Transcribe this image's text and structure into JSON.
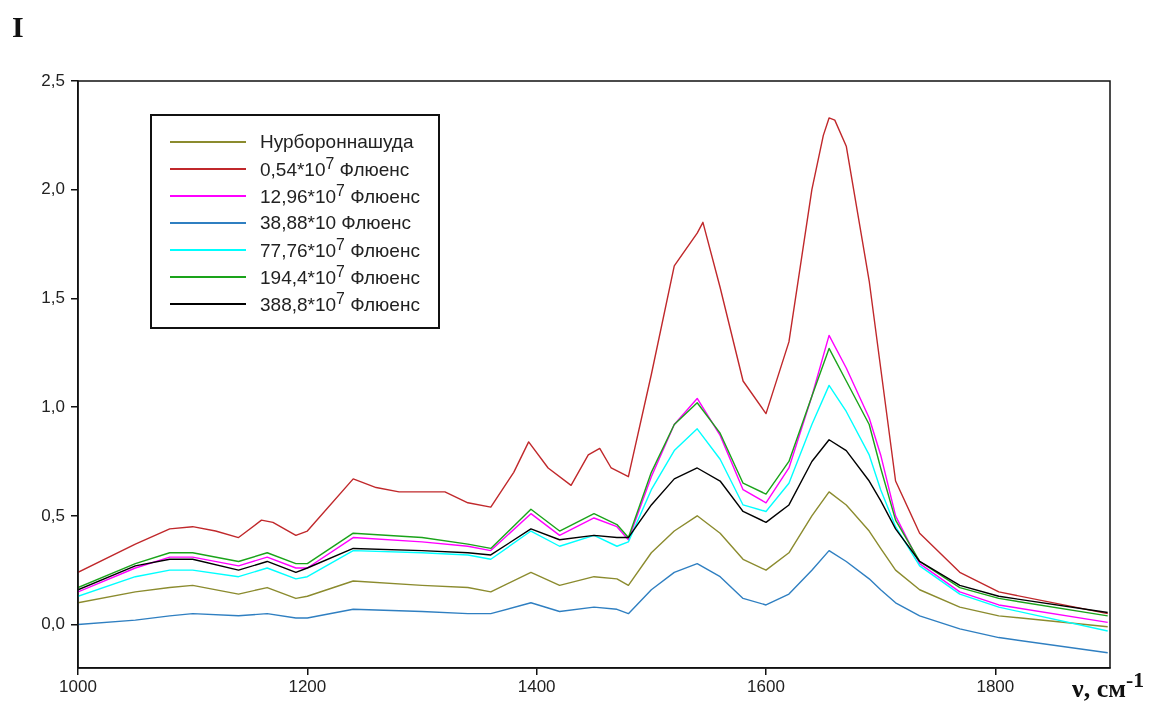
{
  "chart_data": {
    "type": "line",
    "ylabel": "I",
    "xlabel": "ν, см$^{-1}$",
    "legend": "top left",
    "grid": false,
    "marker": "none",
    "line_style": "solid",
    "x": [
      1000,
      1050,
      1080,
      1100,
      1140,
      1165,
      1190,
      1200,
      1240,
      1300,
      1340,
      1360,
      1395,
      1420,
      1450,
      1470,
      1480,
      1500,
      1520,
      1540,
      1560,
      1580,
      1600,
      1620,
      1640,
      1655,
      1670,
      1690,
      1700,
      1713,
      1734,
      1769,
      1803,
      1898
    ],
    "xlim": [
      1000,
      1900
    ],
    "xticks": [
      1000,
      1200,
      1400,
      1600,
      1800
    ],
    "ylim": [
      -0.2,
      2.5
    ],
    "yticks": [
      {
        "value": 0,
        "label": "0,0"
      },
      {
        "value": 0.5,
        "label": "0,5"
      },
      {
        "value": 1,
        "label": "1,0"
      },
      {
        "value": 1.5,
        "label": "1,5"
      },
      {
        "value": 2,
        "label": "2,0"
      },
      {
        "value": 2.5,
        "label": "2,5"
      }
    ],
    "series": [
      {
        "name": "Нурбороннашуда",
        "color": "#8b8b2e",
        "values": [
          0.1,
          0.15,
          0.17,
          0.18,
          0.14,
          0.17,
          0.12,
          0.13,
          0.2,
          0.18,
          0.17,
          0.15,
          0.24,
          0.18,
          0.22,
          0.21,
          0.18,
          0.33,
          0.43,
          0.5,
          0.42,
          0.3,
          0.25,
          0.33,
          0.5,
          0.61,
          0.55,
          0.43,
          0.35,
          0.25,
          0.16,
          0.08,
          0.04,
          -0.01
        ]
      },
      {
        "name": "0,54*10$^{7}$ Флюенс",
        "color": "#c0282b",
        "x": [
          1000,
          1050,
          1080,
          1100,
          1120,
          1140,
          1160,
          1170,
          1190,
          1200,
          1240,
          1260,
          1280,
          1320,
          1340,
          1360,
          1380,
          1393,
          1410,
          1430,
          1445,
          1455,
          1465,
          1480,
          1500,
          1520,
          1540,
          1545,
          1560,
          1580,
          1600,
          1620,
          1640,
          1650,
          1655,
          1660,
          1670,
          1690,
          1699,
          1713,
          1734,
          1769,
          1803,
          1898
        ],
        "values": [
          0.24,
          0.37,
          0.44,
          0.45,
          0.43,
          0.4,
          0.48,
          0.47,
          0.41,
          0.43,
          0.67,
          0.63,
          0.61,
          0.61,
          0.56,
          0.54,
          0.7,
          0.84,
          0.72,
          0.64,
          0.78,
          0.81,
          0.72,
          0.68,
          1.15,
          1.65,
          1.8,
          1.85,
          1.55,
          1.12,
          0.97,
          1.3,
          2.0,
          2.25,
          2.33,
          2.32,
          2.2,
          1.58,
          1.22,
          0.66,
          0.42,
          0.24,
          0.15,
          0.05
        ]
      },
      {
        "name": "12,96*10$^{7}$ Флюенс",
        "color": "#ff00ff",
        "values": [
          0.15,
          0.26,
          0.31,
          0.31,
          0.27,
          0.31,
          0.26,
          0.26,
          0.4,
          0.38,
          0.36,
          0.34,
          0.51,
          0.41,
          0.49,
          0.45,
          0.39,
          0.68,
          0.92,
          1.04,
          0.87,
          0.62,
          0.56,
          0.72,
          1.05,
          1.33,
          1.18,
          0.95,
          0.78,
          0.5,
          0.28,
          0.15,
          0.09,
          0.01
        ]
      },
      {
        "name": "38,88*10 Флюенс",
        "color": "#2f7fc1",
        "values": [
          0.0,
          0.02,
          0.04,
          0.05,
          0.04,
          0.05,
          0.03,
          0.03,
          0.07,
          0.06,
          0.05,
          0.05,
          0.1,
          0.06,
          0.08,
          0.07,
          0.05,
          0.16,
          0.24,
          0.28,
          0.22,
          0.12,
          0.09,
          0.14,
          0.25,
          0.34,
          0.29,
          0.21,
          0.16,
          0.1,
          0.04,
          -0.02,
          -0.06,
          -0.13
        ]
      },
      {
        "name": "77,76*10$^{7}$ Флюенс",
        "color": "#00ffff",
        "values": [
          0.13,
          0.22,
          0.25,
          0.25,
          0.22,
          0.26,
          0.21,
          0.22,
          0.34,
          0.33,
          0.32,
          0.3,
          0.43,
          0.36,
          0.41,
          0.36,
          0.38,
          0.62,
          0.8,
          0.9,
          0.76,
          0.55,
          0.52,
          0.65,
          0.92,
          1.1,
          0.98,
          0.78,
          0.62,
          0.45,
          0.27,
          0.14,
          0.08,
          -0.03
        ]
      },
      {
        "name": "194,4*10$^{7}$ Флюенс",
        "color": "#1aa31a",
        "values": [
          0.17,
          0.28,
          0.33,
          0.33,
          0.29,
          0.33,
          0.28,
          0.28,
          0.42,
          0.4,
          0.37,
          0.35,
          0.53,
          0.43,
          0.51,
          0.46,
          0.4,
          0.7,
          0.92,
          1.02,
          0.88,
          0.65,
          0.6,
          0.75,
          1.05,
          1.27,
          1.12,
          0.92,
          0.72,
          0.48,
          0.29,
          0.17,
          0.12,
          0.04
        ]
      },
      {
        "name": "388,8*10$^{7}$ Флюенс",
        "color": "#000000",
        "values": [
          0.16,
          0.27,
          0.3,
          0.3,
          0.25,
          0.29,
          0.24,
          0.26,
          0.35,
          0.34,
          0.33,
          0.32,
          0.44,
          0.39,
          0.41,
          0.4,
          0.4,
          0.55,
          0.67,
          0.72,
          0.66,
          0.52,
          0.47,
          0.55,
          0.75,
          0.85,
          0.8,
          0.66,
          0.57,
          0.44,
          0.29,
          0.18,
          0.13,
          0.055
        ]
      }
    ]
  }
}
